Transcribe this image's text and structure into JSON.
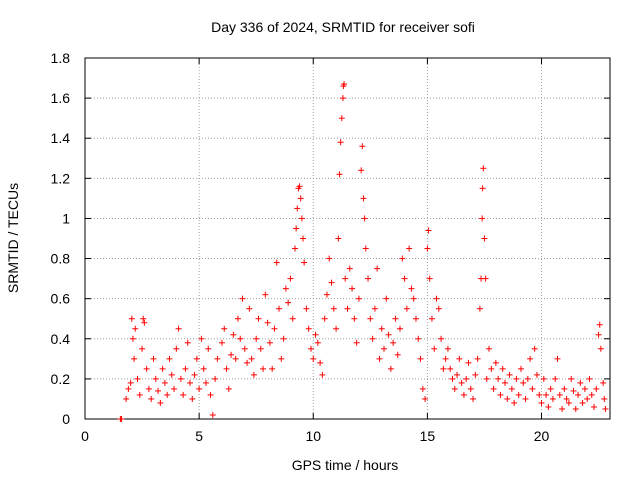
{
  "chart_data": {
    "type": "scatter",
    "title": "Day 336 of 2024, SRMTID for receiver sofi",
    "xlabel": "GPS time / hours",
    "ylabel": "SRMTID / TECUs",
    "xlim": [
      0,
      23
    ],
    "ylim": [
      0,
      1.8
    ],
    "xticks": [
      "0",
      "5",
      "10",
      "15",
      "20"
    ],
    "yticks": [
      "0",
      "0.2",
      "0.4",
      "0.6",
      "0.8",
      "1",
      "1.2",
      "1.4",
      "1.6",
      "1.8"
    ],
    "grid": true,
    "marker": "+",
    "marker_color": "#ff0000",
    "series": [
      {
        "name": "SRMTID",
        "points": [
          [
            1.55,
            0.0
          ],
          [
            1.6,
            0.0
          ],
          [
            1.8,
            0.1
          ],
          [
            1.9,
            0.15
          ],
          [
            2.0,
            0.18
          ],
          [
            2.05,
            0.5
          ],
          [
            2.1,
            0.4
          ],
          [
            2.15,
            0.3
          ],
          [
            2.2,
            0.45
          ],
          [
            2.3,
            0.2
          ],
          [
            2.4,
            0.12
          ],
          [
            2.5,
            0.35
          ],
          [
            2.55,
            0.5
          ],
          [
            2.6,
            0.48
          ],
          [
            2.7,
            0.25
          ],
          [
            2.8,
            0.15
          ],
          [
            2.9,
            0.1
          ],
          [
            3.0,
            0.3
          ],
          [
            3.1,
            0.2
          ],
          [
            3.2,
            0.14
          ],
          [
            3.3,
            0.08
          ],
          [
            3.4,
            0.25
          ],
          [
            3.5,
            0.18
          ],
          [
            3.6,
            0.12
          ],
          [
            3.7,
            0.3
          ],
          [
            3.8,
            0.22
          ],
          [
            3.9,
            0.15
          ],
          [
            4.0,
            0.35
          ],
          [
            4.1,
            0.45
          ],
          [
            4.2,
            0.2
          ],
          [
            4.3,
            0.12
          ],
          [
            4.4,
            0.25
          ],
          [
            4.5,
            0.38
          ],
          [
            4.6,
            0.18
          ],
          [
            4.7,
            0.1
          ],
          [
            4.8,
            0.22
          ],
          [
            4.9,
            0.3
          ],
          [
            5.0,
            0.15
          ],
          [
            5.1,
            0.4
          ],
          [
            5.2,
            0.25
          ],
          [
            5.3,
            0.18
          ],
          [
            5.4,
            0.35
          ],
          [
            5.5,
            0.12
          ],
          [
            5.6,
            0.02
          ],
          [
            5.7,
            0.2
          ],
          [
            5.8,
            0.3
          ],
          [
            6.0,
            0.38
          ],
          [
            6.1,
            0.45
          ],
          [
            6.2,
            0.25
          ],
          [
            6.3,
            0.15
          ],
          [
            6.4,
            0.32
          ],
          [
            6.5,
            0.42
          ],
          [
            6.6,
            0.3
          ],
          [
            6.7,
            0.5
          ],
          [
            6.8,
            0.4
          ],
          [
            6.9,
            0.6
          ],
          [
            7.0,
            0.35
          ],
          [
            7.1,
            0.28
          ],
          [
            7.2,
            0.55
          ],
          [
            7.3,
            0.3
          ],
          [
            7.4,
            0.22
          ],
          [
            7.5,
            0.4
          ],
          [
            7.6,
            0.5
          ],
          [
            7.7,
            0.35
          ],
          [
            7.8,
            0.25
          ],
          [
            7.9,
            0.62
          ],
          [
            8.0,
            0.48
          ],
          [
            8.1,
            0.38
          ],
          [
            8.2,
            0.25
          ],
          [
            8.3,
            0.45
          ],
          [
            8.4,
            0.78
          ],
          [
            8.5,
            0.55
          ],
          [
            8.6,
            0.3
          ],
          [
            8.7,
            0.4
          ],
          [
            8.8,
            0.65
          ],
          [
            8.9,
            0.58
          ],
          [
            9.0,
            0.7
          ],
          [
            9.1,
            0.5
          ],
          [
            9.2,
            0.85
          ],
          [
            9.25,
            0.95
          ],
          [
            9.3,
            1.05
          ],
          [
            9.35,
            1.15
          ],
          [
            9.4,
            1.16
          ],
          [
            9.45,
            1.1
          ],
          [
            9.5,
            1.0
          ],
          [
            9.55,
            0.9
          ],
          [
            9.6,
            0.78
          ],
          [
            9.7,
            0.55
          ],
          [
            9.8,
            0.45
          ],
          [
            9.9,
            0.35
          ],
          [
            10.0,
            0.3
          ],
          [
            10.1,
            0.42
          ],
          [
            10.2,
            0.38
          ],
          [
            10.3,
            0.28
          ],
          [
            10.4,
            0.22
          ],
          [
            10.5,
            0.5
          ],
          [
            10.6,
            0.62
          ],
          [
            10.7,
            0.8
          ],
          [
            10.8,
            0.68
          ],
          [
            10.9,
            0.55
          ],
          [
            11.0,
            0.45
          ],
          [
            11.1,
            0.9
          ],
          [
            11.15,
            1.22
          ],
          [
            11.2,
            1.38
          ],
          [
            11.25,
            1.5
          ],
          [
            11.3,
            1.6
          ],
          [
            11.32,
            1.66
          ],
          [
            11.35,
            1.67
          ],
          [
            11.4,
            0.7
          ],
          [
            11.5,
            0.55
          ],
          [
            11.6,
            0.75
          ],
          [
            11.7,
            0.65
          ],
          [
            11.8,
            0.5
          ],
          [
            11.9,
            0.38
          ],
          [
            12.0,
            0.6
          ],
          [
            12.1,
            1.24
          ],
          [
            12.15,
            1.36
          ],
          [
            12.2,
            1.1
          ],
          [
            12.25,
            1.0
          ],
          [
            12.3,
            0.85
          ],
          [
            12.4,
            0.7
          ],
          [
            12.5,
            0.5
          ],
          [
            12.6,
            0.4
          ],
          [
            12.7,
            0.55
          ],
          [
            12.8,
            0.75
          ],
          [
            12.9,
            0.3
          ],
          [
            13.0,
            0.45
          ],
          [
            13.1,
            0.35
          ],
          [
            13.2,
            0.6
          ],
          [
            13.3,
            0.42
          ],
          [
            13.4,
            0.25
          ],
          [
            13.5,
            0.38
          ],
          [
            13.6,
            0.5
          ],
          [
            13.7,
            0.32
          ],
          [
            13.8,
            0.45
          ],
          [
            13.9,
            0.8
          ],
          [
            14.0,
            0.7
          ],
          [
            14.1,
            0.55
          ],
          [
            14.2,
            0.85
          ],
          [
            14.3,
            0.65
          ],
          [
            14.4,
            0.6
          ],
          [
            14.5,
            0.5
          ],
          [
            14.6,
            0.4
          ],
          [
            14.7,
            0.3
          ],
          [
            14.8,
            0.15
          ],
          [
            14.9,
            0.1
          ],
          [
            15.0,
            0.85
          ],
          [
            15.05,
            0.94
          ],
          [
            15.1,
            0.7
          ],
          [
            15.2,
            0.5
          ],
          [
            15.3,
            0.35
          ],
          [
            15.4,
            0.6
          ],
          [
            15.5,
            0.55
          ],
          [
            15.6,
            0.4
          ],
          [
            15.7,
            0.25
          ],
          [
            15.8,
            0.3
          ],
          [
            15.9,
            0.35
          ],
          [
            16.0,
            0.25
          ],
          [
            16.1,
            0.2
          ],
          [
            16.2,
            0.15
          ],
          [
            16.3,
            0.22
          ],
          [
            16.4,
            0.3
          ],
          [
            16.5,
            0.18
          ],
          [
            16.6,
            0.12
          ],
          [
            16.7,
            0.2
          ],
          [
            16.8,
            0.28
          ],
          [
            16.9,
            0.15
          ],
          [
            17.0,
            0.1
          ],
          [
            17.1,
            0.22
          ],
          [
            17.2,
            0.3
          ],
          [
            17.3,
            0.55
          ],
          [
            17.35,
            0.7
          ],
          [
            17.4,
            1.0
          ],
          [
            17.42,
            1.15
          ],
          [
            17.45,
            1.25
          ],
          [
            17.5,
            0.9
          ],
          [
            17.55,
            0.7
          ],
          [
            17.6,
            0.2
          ],
          [
            17.7,
            0.35
          ],
          [
            17.8,
            0.25
          ],
          [
            17.9,
            0.15
          ],
          [
            18.0,
            0.28
          ],
          [
            18.1,
            0.2
          ],
          [
            18.2,
            0.12
          ],
          [
            18.3,
            0.25
          ],
          [
            18.4,
            0.18
          ],
          [
            18.5,
            0.1
          ],
          [
            18.6,
            0.22
          ],
          [
            18.7,
            0.15
          ],
          [
            18.8,
            0.08
          ],
          [
            18.9,
            0.2
          ],
          [
            19.0,
            0.12
          ],
          [
            19.1,
            0.25
          ],
          [
            19.2,
            0.18
          ],
          [
            19.3,
            0.1
          ],
          [
            19.4,
            0.2
          ],
          [
            19.5,
            0.3
          ],
          [
            19.6,
            0.15
          ],
          [
            19.7,
            0.35
          ],
          [
            19.8,
            0.22
          ],
          [
            19.9,
            0.12
          ],
          [
            20.0,
            0.08
          ],
          [
            20.1,
            0.2
          ],
          [
            20.2,
            0.12
          ],
          [
            20.3,
            0.06
          ],
          [
            20.4,
            0.15
          ],
          [
            20.5,
            0.1
          ],
          [
            20.6,
            0.2
          ],
          [
            20.7,
            0.3
          ],
          [
            20.8,
            0.12
          ],
          [
            20.9,
            0.05
          ],
          [
            21.0,
            0.15
          ],
          [
            21.1,
            0.1
          ],
          [
            21.2,
            0.08
          ],
          [
            21.3,
            0.2
          ],
          [
            21.4,
            0.14
          ],
          [
            21.5,
            0.05
          ],
          [
            21.6,
            0.12
          ],
          [
            21.7,
            0.18
          ],
          [
            21.8,
            0.08
          ],
          [
            21.9,
            0.15
          ],
          [
            22.0,
            0.1
          ],
          [
            22.1,
            0.2
          ],
          [
            22.2,
            0.12
          ],
          [
            22.3,
            0.06
          ],
          [
            22.4,
            0.15
          ],
          [
            22.5,
            0.42
          ],
          [
            22.55,
            0.47
          ],
          [
            22.6,
            0.35
          ],
          [
            22.7,
            0.18
          ],
          [
            22.75,
            0.1
          ],
          [
            22.8,
            0.05
          ]
        ]
      }
    ]
  }
}
